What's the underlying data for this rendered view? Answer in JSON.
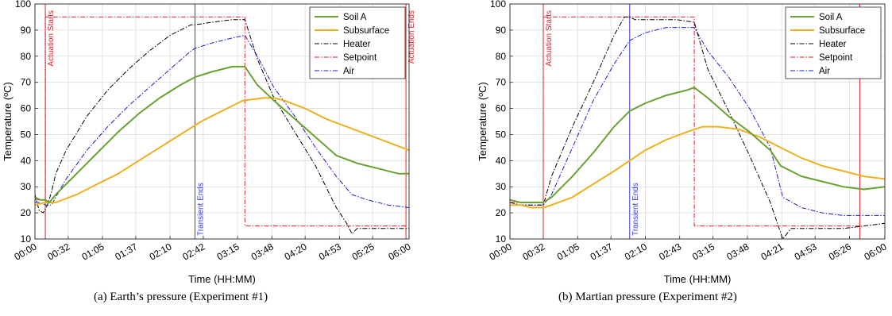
{
  "captions": [
    "(a) Earth’s pressure (Experiment #1)",
    "(b) Martian pressure (Experiment #2)"
  ],
  "colors": {
    "Soil A": "#6aa232",
    "Subsurface": "#edb120",
    "Heater": "#000000",
    "Setpoint": "#e0202a",
    "Air": "#1a1ad8",
    "Transient": "#3a3ae8",
    "Actuation": "#e0202a",
    "grid": "#dcdcdc",
    "axis": "#262626"
  },
  "chart_data": [
    {
      "type": "line",
      "xlabel": "Time (HH:MM)",
      "ylabel": "Temperature (ºC)",
      "xlim": [
        0,
        360
      ],
      "ylim": [
        10,
        100
      ],
      "yticks": [
        10,
        20,
        30,
        40,
        50,
        60,
        70,
        80,
        90,
        100
      ],
      "xticks": [
        {
          "v": 0,
          "label": "00:00"
        },
        {
          "v": 32,
          "label": "00:32"
        },
        {
          "v": 65,
          "label": "01:05"
        },
        {
          "v": 97,
          "label": "01:37"
        },
        {
          "v": 130,
          "label": "02:10"
        },
        {
          "v": 162,
          "label": "02:42"
        },
        {
          "v": 195,
          "label": "03:15"
        },
        {
          "v": 228,
          "label": "03:48"
        },
        {
          "v": 260,
          "label": "04:20"
        },
        {
          "v": 293,
          "label": "04:53"
        },
        {
          "v": 325,
          "label": "05:25"
        },
        {
          "v": 360,
          "label": "06:00"
        }
      ],
      "grid": true,
      "legend": "top-right",
      "vlines": [
        {
          "x": 10,
          "label": "Actuation Starts",
          "kind": "Actuation"
        },
        {
          "x": 154,
          "label": "Transient Ends",
          "kind": "Transient"
        },
        {
          "x": 357,
          "label": "Actuation Ends",
          "kind": "Actuation"
        }
      ],
      "series": [
        {
          "name": "Soil A",
          "x": [
            0,
            5,
            10,
            14,
            20,
            40,
            60,
            80,
            100,
            120,
            140,
            154,
            170,
            190,
            202,
            214,
            230,
            250,
            270,
            290,
            310,
            330,
            350,
            360
          ],
          "y": [
            26,
            25,
            25,
            24,
            27,
            35,
            43,
            51,
            58,
            64,
            69,
            72,
            74,
            76,
            76,
            69,
            63,
            56,
            49,
            42,
            39,
            37,
            35,
            35
          ]
        },
        {
          "name": "Subsurface",
          "x": [
            0,
            10,
            20,
            40,
            60,
            80,
            100,
            120,
            140,
            160,
            180,
            200,
            220,
            230,
            240,
            260,
            280,
            300,
            320,
            340,
            360
          ],
          "y": [
            23,
            24,
            24,
            27,
            31,
            35,
            40,
            45,
            50,
            55,
            59,
            63,
            64,
            64,
            63,
            60,
            56,
            53,
            50,
            47,
            44
          ]
        },
        {
          "name": "Heater",
          "x": [
            0,
            4,
            8,
            12,
            16,
            20,
            30,
            50,
            70,
            90,
            110,
            130,
            150,
            154,
            170,
            190,
            202,
            214,
            230,
            250,
            270,
            290,
            300,
            305,
            310,
            320,
            340,
            360
          ],
          "y": [
            27,
            21,
            20,
            23,
            28,
            35,
            44,
            57,
            67,
            75,
            82,
            88,
            92,
            92,
            93,
            94,
            94,
            79,
            64,
            51,
            38,
            22,
            16,
            12,
            14,
            14,
            14,
            14
          ]
        },
        {
          "name": "Setpoint",
          "x": [
            0,
            10,
            10,
            202,
            202,
            357
          ],
          "y": [
            25,
            25,
            95,
            95,
            15,
            15
          ]
        },
        {
          "name": "Air",
          "x": [
            0,
            5,
            10,
            16,
            20,
            30,
            50,
            70,
            90,
            110,
            130,
            150,
            154,
            170,
            190,
            202,
            214,
            230,
            250,
            270,
            290,
            305,
            320,
            340,
            360
          ],
          "y": [
            24,
            24,
            23,
            23,
            26,
            33,
            44,
            53,
            61,
            68,
            75,
            82,
            83,
            85,
            87,
            88,
            80,
            68,
            57,
            45,
            34,
            27,
            25,
            23,
            22
          ]
        }
      ]
    },
    {
      "type": "line",
      "xlabel": "Time (HH:MM)",
      "ylabel": "Temperature (ºC)",
      "xlim": [
        0,
        360
      ],
      "ylim": [
        10,
        100
      ],
      "yticks": [
        10,
        20,
        30,
        40,
        50,
        60,
        70,
        80,
        90,
        100
      ],
      "xticks": [
        {
          "v": 0,
          "label": "00:00"
        },
        {
          "v": 32,
          "label": "00:32"
        },
        {
          "v": 65,
          "label": "01:05"
        },
        {
          "v": 97,
          "label": "01:37"
        },
        {
          "v": 130,
          "label": "02:10"
        },
        {
          "v": 163,
          "label": "02:43"
        },
        {
          "v": 195,
          "label": "03:15"
        },
        {
          "v": 228,
          "label": "03:48"
        },
        {
          "v": 261,
          "label": "04:21"
        },
        {
          "v": 293,
          "label": "04:53"
        },
        {
          "v": 326,
          "label": "05:26"
        },
        {
          "v": 360,
          "label": "06:00"
        }
      ],
      "grid": true,
      "legend": "top-right",
      "vlines": [
        {
          "x": 32,
          "label": "Actuation Starts",
          "kind": "Actuation"
        },
        {
          "x": 115,
          "label": "Transient Ends",
          "kind": "Transient"
        },
        {
          "x": 336,
          "label": "Actuation Ends",
          "kind": "Actuation"
        }
      ],
      "series": [
        {
          "name": "Soil A",
          "x": [
            0,
            10,
            20,
            32,
            40,
            60,
            80,
            100,
            115,
            130,
            150,
            170,
            177,
            190,
            210,
            230,
            250,
            260,
            280,
            300,
            320,
            340,
            360
          ],
          "y": [
            25,
            24,
            24,
            24,
            26,
            34,
            43,
            53,
            59,
            62,
            65,
            67,
            68,
            64,
            57,
            51,
            44,
            38,
            34,
            32,
            30,
            29,
            30
          ]
        },
        {
          "name": "Subsurface",
          "x": [
            0,
            10,
            20,
            32,
            40,
            60,
            80,
            100,
            115,
            130,
            150,
            170,
            185,
            200,
            220,
            240,
            260,
            280,
            300,
            320,
            340,
            360
          ],
          "y": [
            23,
            23,
            22,
            22,
            23,
            26,
            31,
            36,
            40,
            44,
            48,
            51,
            53,
            53,
            52,
            49,
            45,
            41,
            38,
            36,
            34,
            33
          ]
        },
        {
          "name": "Heater",
          "x": [
            0,
            10,
            20,
            32,
            40,
            60,
            80,
            100,
            110,
            115,
            120,
            140,
            160,
            177,
            190,
            210,
            230,
            250,
            262,
            270,
            280,
            300,
            320,
            340,
            360
          ],
          "y": [
            24,
            23,
            23,
            23,
            34,
            53,
            70,
            88,
            95,
            95,
            94,
            94,
            94,
            93,
            75,
            59,
            42,
            24,
            10,
            14,
            14,
            14,
            14,
            15,
            16
          ]
        },
        {
          "name": "Setpoint",
          "x": [
            0,
            32,
            32,
            177,
            177,
            336
          ],
          "y": [
            24,
            24,
            95,
            95,
            15,
            15
          ]
        },
        {
          "name": "Air",
          "x": [
            0,
            10,
            20,
            32,
            40,
            60,
            80,
            100,
            115,
            130,
            150,
            177,
            190,
            210,
            230,
            250,
            262,
            280,
            300,
            320,
            340,
            360
          ],
          "y": [
            23,
            23,
            23,
            23,
            27,
            45,
            63,
            77,
            86,
            89,
            91,
            91,
            82,
            72,
            60,
            45,
            26,
            22,
            20,
            19,
            19,
            19
          ]
        }
      ]
    }
  ]
}
